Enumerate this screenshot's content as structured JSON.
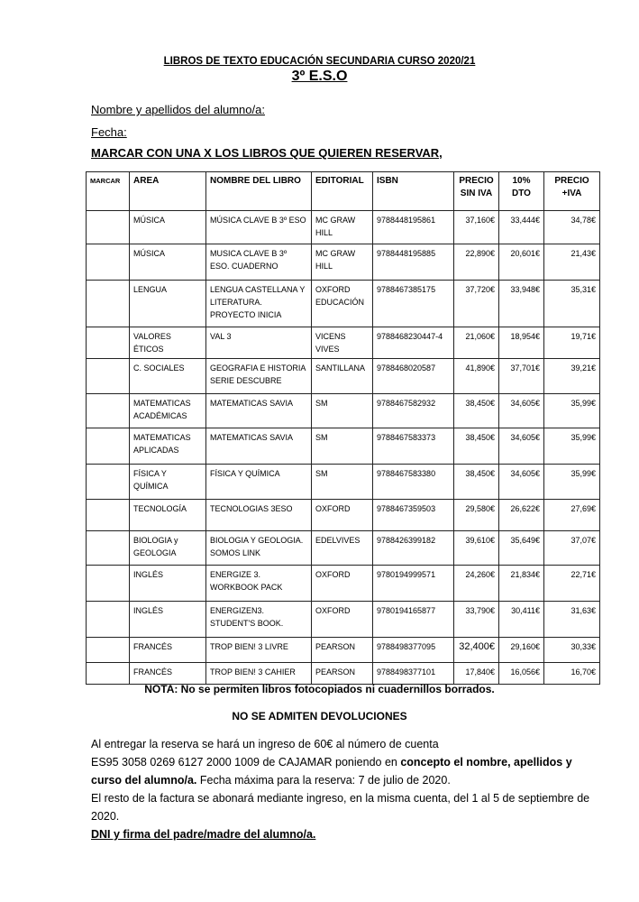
{
  "title": "LIBROS DE TEXTO EDUCACIÓN SECUNDARIA CURSO 2020/21",
  "subtitle": "3º E.S.O",
  "name_label": "Nombre y apellidos del alumno/a:",
  "date_label": "Fecha:",
  "instruction": "MARCAR CON UNA X LOS LIBROS QUE QUIEREN RESERVAR,",
  "table": {
    "headers": [
      "MARCAR",
      "AREA",
      "NOMBRE DEL LIBRO",
      "EDITORIAL",
      "ISBN",
      "PRECIO SIN IVA",
      "10% DTO",
      "PRECIO +IVA"
    ],
    "rows": [
      [
        "",
        "MÚSICA",
        "MÚSICA CLAVE B  3º ESO",
        "MC GRAW HILL",
        "9788448195861",
        "37,160€",
        "33,444€",
        "34,78€"
      ],
      [
        "",
        "MÚSICA",
        "MUSICA CLAVE B  3º ESO. CUADERNO",
        "MC GRAW HILL",
        "9788448195885",
        "22,890€",
        "20,601€",
        "21,43€"
      ],
      [
        "",
        "LENGUA",
        "LENGUA CASTELLANA Y LITERATURA. PROYECTO INICIA",
        "OXFORD EDUCACIÓN",
        "9788467385175",
        "37,720€",
        "33,948€",
        "35,31€"
      ],
      [
        "",
        "VALORES ÉTICOS",
        "VAL 3",
        "VICENS VIVES",
        "9788468230447-4",
        "21,060€",
        "18,954€",
        "19,71€"
      ],
      [
        "",
        "C. SOCIALES",
        "GEOGRAFIA E HISTORIA SERIE DESCUBRE",
        "SANTILLANA",
        "9788468020587",
        "41,890€",
        "37,701€",
        "39,21€"
      ],
      [
        "",
        "MATEMATICAS ACADÉMICAS",
        "MATEMATICAS SAVIA",
        "SM",
        "9788467582932",
        "38,450€",
        "34,605€",
        "35,99€"
      ],
      [
        "",
        "MATEMATICAS APLICADAS",
        "MATEMATICAS SAVIA",
        "SM",
        "9788467583373",
        "38,450€",
        "34,605€",
        "35,99€"
      ],
      [
        "",
        "FÍSICA Y QUÍMICA",
        "FÍSICA Y QUÍMICA",
        "SM",
        "9788467583380",
        "38,450€",
        "34,605€",
        "35,99€"
      ],
      [
        "",
        "TECNOLOGÍA",
        "TECNOLOGIAS 3ESO",
        "OXFORD",
        "9788467359503",
        "29,580€",
        "26,622€",
        "27,69€"
      ],
      [
        "",
        "BIOLOGIA y GEOLOGIA",
        "BIOLOGIA Y GEOLOGIA. SOMOS LINK",
        "EDELVIVES",
        "9788426399182",
        "39,610€",
        "35,649€",
        "37,07€"
      ],
      [
        "",
        "INGLÉS",
        "ENERGIZE 3. WORKBOOK PACK",
        "OXFORD",
        "9780194999571",
        "24,260€",
        "21,834€",
        "22,71€"
      ],
      [
        "",
        "INGLÉS",
        "ENERGIZEN3. STUDENT'S BOOK.",
        "OXFORD",
        "9780194165877",
        "33,790€",
        "30,411€",
        "31,63€"
      ],
      [
        "",
        "FRANCÉS",
        "TROP  BIEN! 3 LIVRE",
        "PEARSON",
        "9788498377095",
        "32,400€",
        "29,160€",
        "30,33€"
      ],
      [
        "",
        "FRANCÉS",
        "TROP BIEN! 3 CAHIER",
        "PEARSON",
        "9788498377101",
        "17,840€",
        "16,056€",
        "16,70€"
      ]
    ]
  },
  "note": "NOTA: No se permiten libros fotocopiados ni cuadernillos borrados.",
  "no_returns": "NO SE ADMITEN DEVOLUCIONES",
  "para1_a": "Al entregar la reserva se hará un ingreso de 60€ al número de cuenta",
  "para1_b": "ES95 3058 0269 6127 2000 1009 de CAJAMAR poniendo en ",
  "para1_bold": "concepto el nombre, apellidos y curso del alumno/a.",
  "para1_c": " Fecha máxima para la reserva: 7 de julio de 2020.",
  "para2": "El resto de la factura se abonará mediante ingreso, en la misma cuenta, del 1 al 5 de septiembre de 2020.",
  "signature": "DNI y firma del padre/madre del alumno/a."
}
